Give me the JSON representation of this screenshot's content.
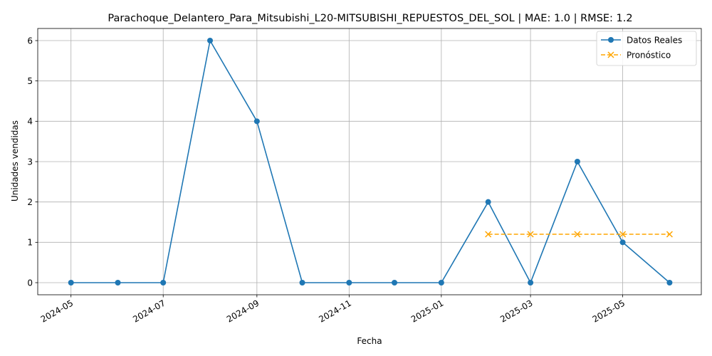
{
  "chart_data": {
    "type": "line",
    "title": "Parachoque_Delantero_Para_Mitsubishi_L20-MITSUBISHI_REPUESTOS_DEL_SOL | MAE: 1.0 | RMSE: 1.2",
    "xlabel": "Fecha",
    "ylabel": "Unidades vendidas",
    "x_ticks": [
      "2024-05",
      "2024-07",
      "2024-09",
      "2024-11",
      "2025-01",
      "2025-03",
      "2025-05"
    ],
    "y_ticks": [
      0,
      1,
      2,
      3,
      4,
      5,
      6
    ],
    "xlim": [
      "2024-04-09",
      "2025-06-22"
    ],
    "ylim": [
      -0.3,
      6.3
    ],
    "grid": true,
    "legend_position": "top-right",
    "series": [
      {
        "name": "Datos Reales",
        "color": "#1f77b4",
        "style": "solid",
        "marker": "circle",
        "x": [
          "2024-05-01",
          "2024-06-01",
          "2024-07-01",
          "2024-08-01",
          "2024-09-01",
          "2024-10-01",
          "2024-11-01",
          "2024-12-01",
          "2025-01-01",
          "2025-02-01",
          "2025-03-01",
          "2025-04-01",
          "2025-05-01",
          "2025-06-01"
        ],
        "values": [
          0,
          0,
          0,
          6,
          4,
          0,
          0,
          0,
          0,
          2,
          0,
          3,
          1,
          0
        ]
      },
      {
        "name": "Pronóstico",
        "color": "#ffa500",
        "style": "dashed",
        "marker": "x",
        "x": [
          "2025-02-01",
          "2025-03-01",
          "2025-04-01",
          "2025-05-01",
          "2025-06-01"
        ],
        "values": [
          1.2,
          1.2,
          1.2,
          1.2,
          1.2
        ]
      }
    ]
  }
}
